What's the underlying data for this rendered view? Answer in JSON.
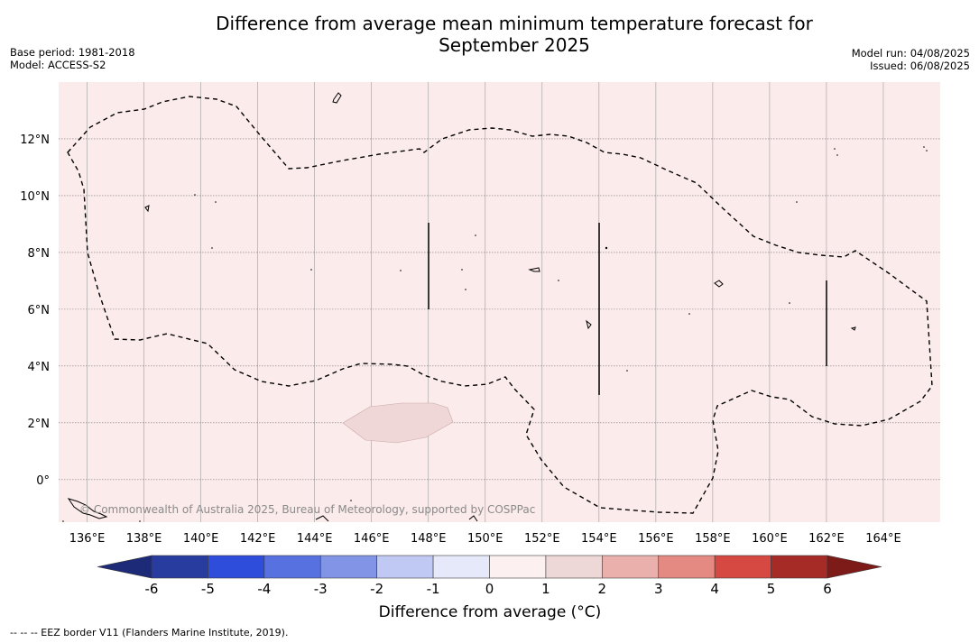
{
  "title_line1": "Difference from average mean minimum temperature forecast for",
  "title_line2": "September 2025",
  "base_period": "Base period: 1981-2018",
  "model": "Model: ACCESS-S2",
  "model_run": "Model run: 04/08/2025",
  "issued": "Issued: 06/08/2025",
  "copyright": "© Commonwealth of Australia 2025, Bureau of Meteorology, supported by COSPPac",
  "footer": "--  --  -- EEZ border V11 (Flanders Marine Institute, 2019).",
  "colorbar_label": "Difference from average (°C)",
  "map": {
    "lon_range": [
      135.0,
      166.0
    ],
    "lat_range": [
      -1.5,
      14.0
    ],
    "lon_ticks": [
      "136°E",
      "138°E",
      "140°E",
      "142°E",
      "144°E",
      "146°E",
      "148°E",
      "150°E",
      "152°E",
      "154°E",
      "156°E",
      "158°E",
      "160°E",
      "162°E",
      "164°E"
    ],
    "lat_ticks": [
      "0°",
      "2°N",
      "4°N",
      "6°N",
      "8°N",
      "10°N",
      "12°N"
    ],
    "background_color": "#fcebeb",
    "patch_color": "#efd7d7",
    "grid": true
  },
  "colorbar": {
    "ticks": [
      "-6",
      "-5",
      "-4",
      "-3",
      "-2",
      "-1",
      "0",
      "1",
      "2",
      "3",
      "4",
      "5",
      "6"
    ],
    "colors": [
      "#283b9f",
      "#2f4ddb",
      "#5871e0",
      "#8194e6",
      "#c0c8f4",
      "#e6e9fa",
      "#fdf0f0",
      "#eed7d7",
      "#eab1ac",
      "#e58a82",
      "#d54942",
      "#a62b27"
    ],
    "under_color": "#1d2a78",
    "over_color": "#7d1b18"
  }
}
